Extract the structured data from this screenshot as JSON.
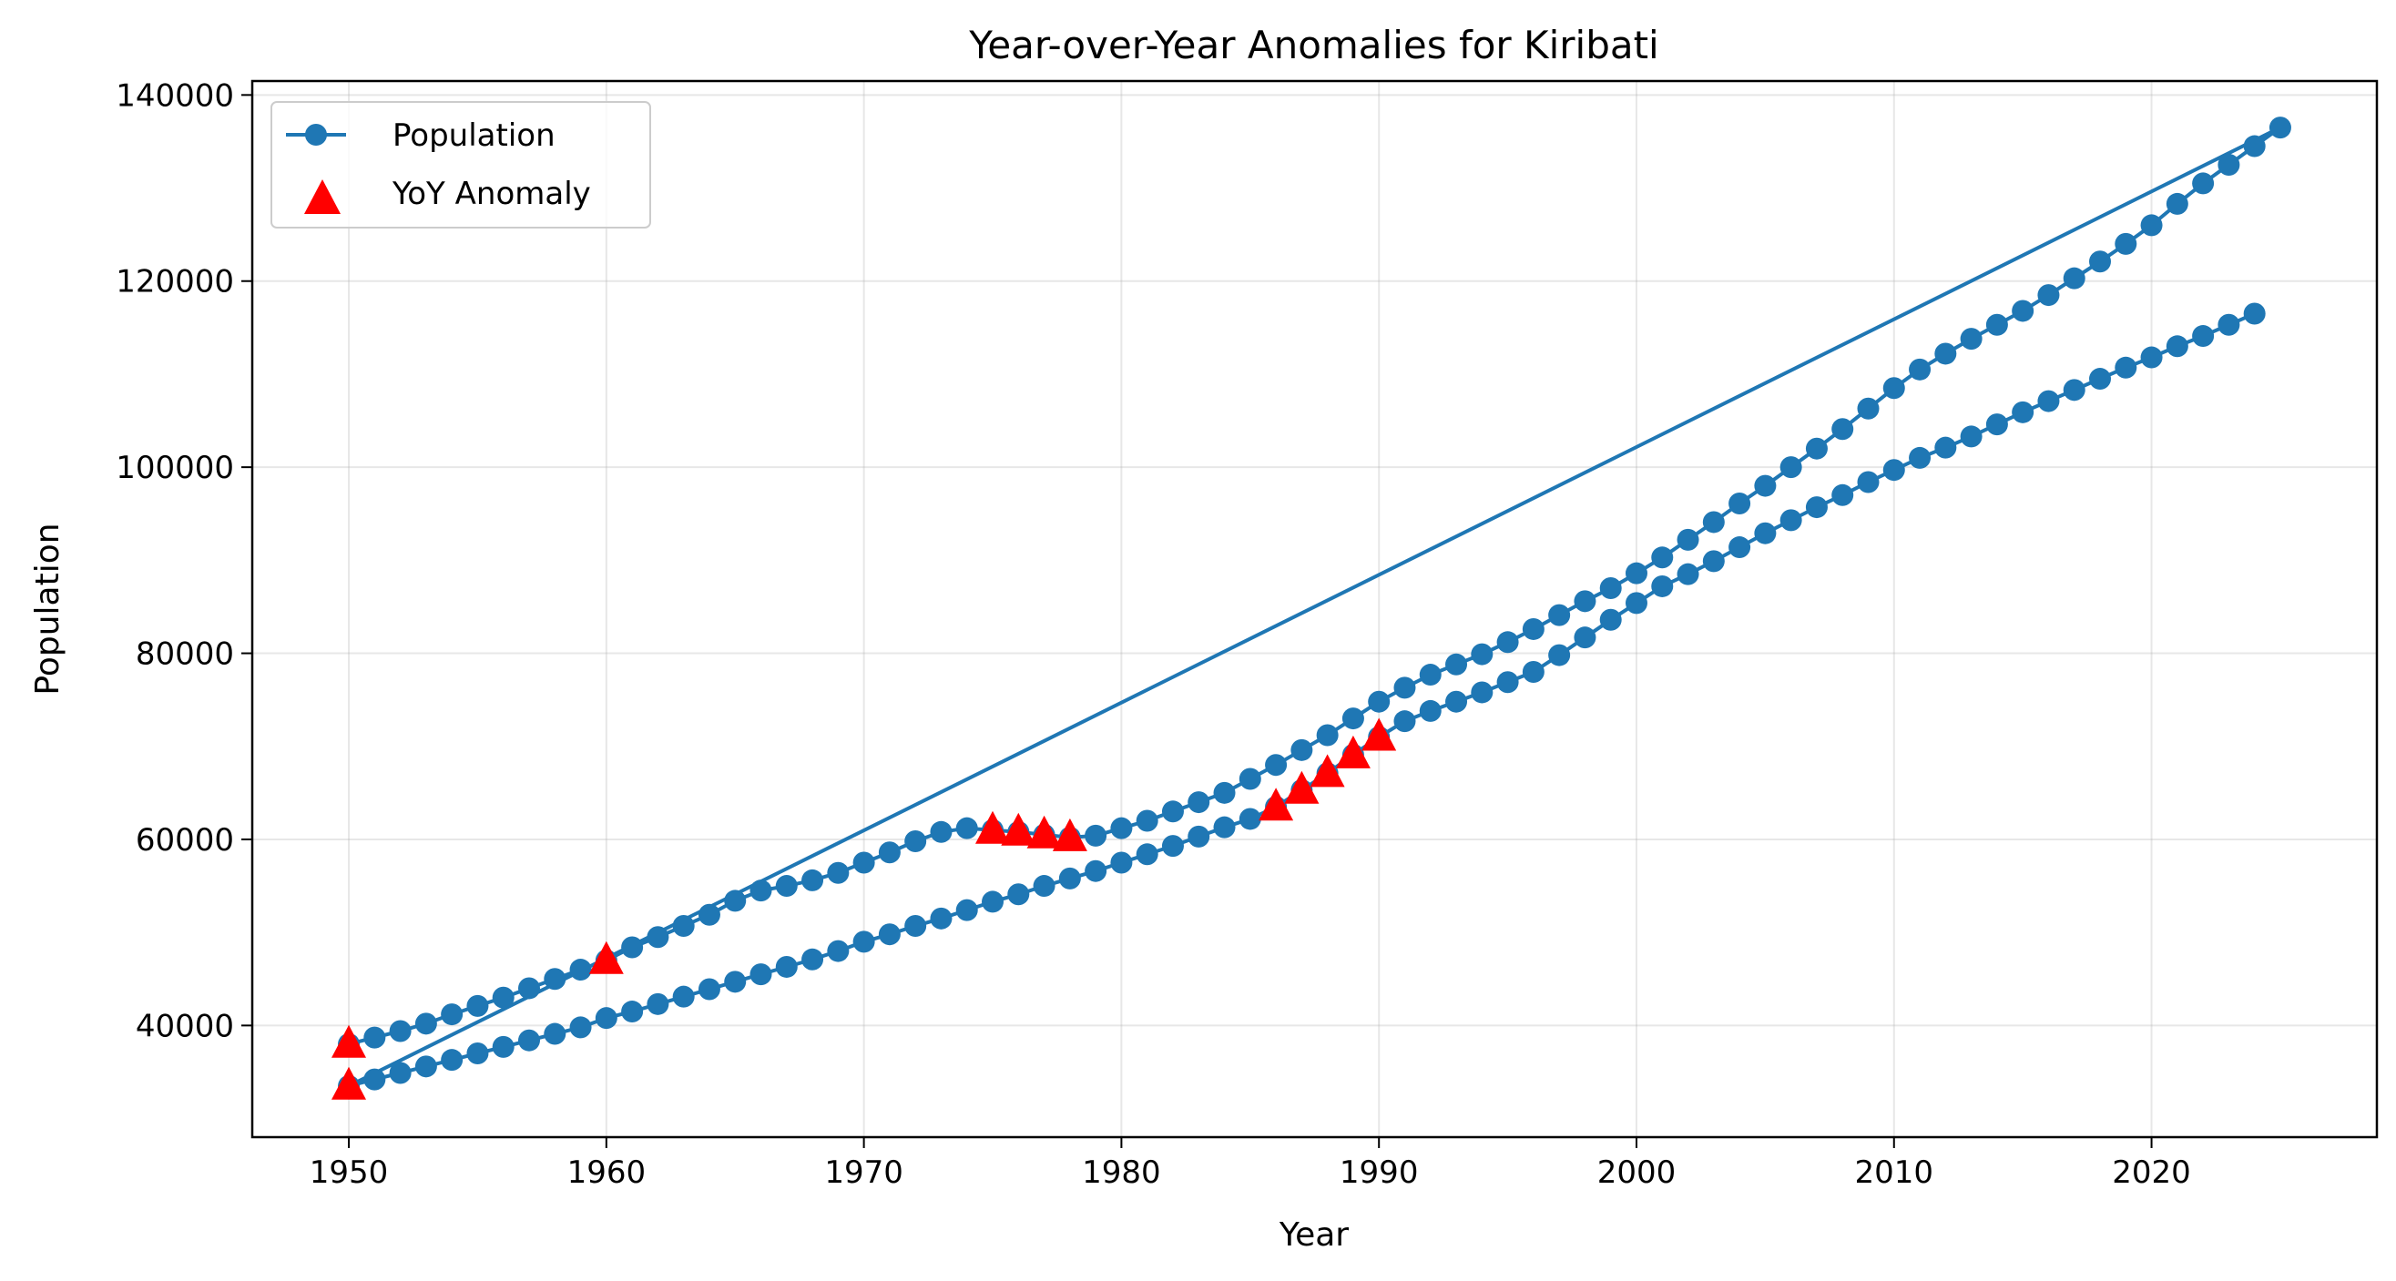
{
  "chart_data": {
    "type": "line",
    "title": "Year-over-Year Anomalies for Kiribati",
    "xlabel": "Year",
    "ylabel": "Population",
    "xlim": [
      1946.25,
      2028.75
    ],
    "ylim": [
      28000,
      141500
    ],
    "xticks": [
      1950,
      1960,
      1970,
      1980,
      1990,
      2000,
      2010,
      2020
    ],
    "yticks": [
      40000,
      60000,
      80000,
      100000,
      120000,
      140000
    ],
    "grid": true,
    "legend_position": "upper-left",
    "colors": {
      "series": "#1f77b4",
      "anomaly": "#ff0000"
    },
    "series": [
      {
        "name": "Population",
        "marker": "circle",
        "x": [
          1950,
          1951,
          1952,
          1953,
          1954,
          1955,
          1956,
          1957,
          1958,
          1959,
          1960,
          1961,
          1962,
          1963,
          1964,
          1965,
          1966,
          1967,
          1968,
          1969,
          1970,
          1971,
          1972,
          1973,
          1974,
          1975,
          1976,
          1977,
          1978,
          1979,
          1980,
          1981,
          1982,
          1983,
          1984,
          1985,
          1986,
          1987,
          1988,
          1989,
          1990,
          1991,
          1992,
          1993,
          1994,
          1995,
          1996,
          1997,
          1998,
          1999,
          2000,
          2001,
          2002,
          2003,
          2004,
          2005,
          2006,
          2007,
          2008,
          2009,
          2010,
          2011,
          2012,
          2013,
          2014,
          2015,
          2016,
          2017,
          2018,
          2019,
          2020,
          2021,
          2022,
          2023,
          2024,
          2025,
          1950,
          1951,
          1952,
          1953,
          1954,
          1955,
          1956,
          1957,
          1958,
          1959,
          1960,
          1961,
          1962,
          1963,
          1964,
          1965,
          1966,
          1967,
          1968,
          1969,
          1970,
          1971,
          1972,
          1973,
          1974,
          1975,
          1976,
          1977,
          1978,
          1979,
          1980,
          1981,
          1982,
          1983,
          1984,
          1985,
          1986,
          1987,
          1988,
          1989,
          1990,
          1991,
          1992,
          1993,
          1994,
          1995,
          1996,
          1997,
          1998,
          1999,
          2000,
          2001,
          2002,
          2003,
          2004,
          2005,
          2006,
          2007,
          2008,
          2009,
          2010,
          2011,
          2012,
          2013,
          2014,
          2015,
          2016,
          2017,
          2018,
          2019,
          2020,
          2021,
          2022,
          2023,
          2024
        ],
        "y": [
          38000,
          38700,
          39400,
          40200,
          41200,
          42100,
          43000,
          44000,
          45000,
          46000,
          47000,
          48400,
          49500,
          50700,
          51900,
          53400,
          54500,
          55000,
          55600,
          56400,
          57500,
          58600,
          59800,
          60800,
          61200,
          61000,
          60800,
          60500,
          60200,
          60400,
          61200,
          62000,
          63000,
          64000,
          65000,
          66500,
          68000,
          69600,
          71200,
          73000,
          74800,
          76300,
          77700,
          78800,
          79900,
          81200,
          82600,
          84100,
          85600,
          87000,
          88600,
          90300,
          92200,
          94100,
          96100,
          98000,
          100000,
          102000,
          104100,
          106300,
          108500,
          110500,
          112200,
          113800,
          115300,
          116800,
          118500,
          120300,
          122100,
          124000,
          126000,
          128300,
          130500,
          132500,
          134500,
          136500,
          33500,
          34200,
          34900,
          35600,
          36300,
          37000,
          37700,
          38400,
          39100,
          39800,
          40800,
          41500,
          42300,
          43100,
          43900,
          44700,
          45500,
          46300,
          47100,
          48000,
          49000,
          49800,
          50700,
          51500,
          52400,
          53300,
          54100,
          55000,
          55800,
          56600,
          57500,
          58400,
          59300,
          60300,
          61300,
          62200,
          63500,
          65300,
          67100,
          69100,
          71000,
          72700,
          73800,
          74800,
          75800,
          76900,
          78000,
          79800,
          81700,
          83600,
          85400,
          87200,
          88500,
          89900,
          91400,
          92900,
          94300,
          95700,
          97000,
          98400,
          99700,
          101000,
          102100,
          103300,
          104600,
          105900,
          107100,
          108300,
          109500,
          110700,
          111800,
          113000,
          114100,
          115300,
          116500
        ]
      }
    ],
    "anomalies": {
      "name": "YoY Anomaly",
      "marker": "triangle",
      "x": [
        1950,
        1950,
        1960,
        1975,
        1976,
        1977,
        1978,
        1986,
        1987,
        1988,
        1989,
        1990
      ],
      "y": [
        38000,
        33500,
        47000,
        61000,
        60800,
        60500,
        60200,
        63500,
        65300,
        67100,
        69100,
        71000
      ]
    }
  }
}
